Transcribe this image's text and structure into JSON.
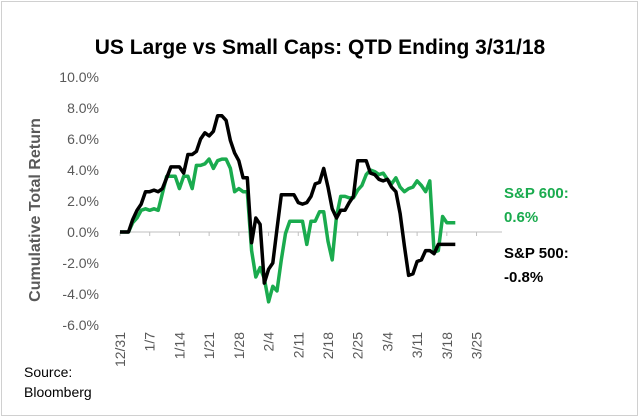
{
  "chart_data": {
    "type": "line",
    "title": "US Large vs Small Caps: QTD Ending 3/31/18",
    "ylabel": "Cumulative Total Return",
    "xlabel": "",
    "ylim": [
      -6.0,
      10.0
    ],
    "ytick_step": 2.0,
    "yticks": [
      "10.0%",
      "8.0%",
      "6.0%",
      "4.0%",
      "2.0%",
      "0.0%",
      "-2.0%",
      "-4.0%",
      "-6.0%"
    ],
    "grid": false,
    "x_ticks": [
      "12/31",
      "1/7",
      "1/14",
      "1/21",
      "1/28",
      "2/4",
      "2/11",
      "2/18",
      "2/25",
      "3/4",
      "3/11",
      "3/18",
      "3/25"
    ],
    "x_tick_day": [
      0,
      7,
      14,
      21,
      28,
      35,
      42,
      49,
      56,
      63,
      70,
      77,
      84
    ],
    "x_day_range": [
      0,
      90
    ],
    "series": [
      {
        "name": "S&P 600",
        "color": "#1aab4e",
        "points": [
          [
            0,
            0.0
          ],
          [
            2,
            0.0
          ],
          [
            3,
            0.6
          ],
          [
            4,
            0.9
          ],
          [
            5,
            1.4
          ],
          [
            6,
            1.5
          ],
          [
            7,
            1.4
          ],
          [
            8,
            1.5
          ],
          [
            9,
            1.4
          ],
          [
            10,
            2.5
          ],
          [
            11,
            3.6
          ],
          [
            12,
            3.6
          ],
          [
            13,
            3.6
          ],
          [
            14,
            2.8
          ],
          [
            15,
            3.6
          ],
          [
            16,
            3.6
          ],
          [
            17,
            2.8
          ],
          [
            18,
            4.3
          ],
          [
            19,
            4.3
          ],
          [
            20,
            4.4
          ],
          [
            21,
            4.7
          ],
          [
            22,
            4.1
          ],
          [
            23,
            4.6
          ],
          [
            24,
            4.7
          ],
          [
            25,
            4.7
          ],
          [
            26,
            4.1
          ],
          [
            27,
            2.6
          ],
          [
            28,
            2.8
          ],
          [
            29,
            2.6
          ],
          [
            30,
            2.6
          ],
          [
            31,
            -1.2
          ],
          [
            32,
            -2.9
          ],
          [
            33,
            -2.3
          ],
          [
            34,
            -3.0
          ],
          [
            35,
            -4.5
          ],
          [
            36,
            -3.5
          ],
          [
            37,
            -3.8
          ],
          [
            38,
            -1.8
          ],
          [
            39,
            -0.1
          ],
          [
            40,
            0.7
          ],
          [
            41,
            0.7
          ],
          [
            42,
            0.7
          ],
          [
            43,
            0.7
          ],
          [
            44,
            -0.8
          ],
          [
            45,
            0.7
          ],
          [
            46,
            0.7
          ],
          [
            47,
            1.3
          ],
          [
            48,
            1.3
          ],
          [
            49,
            -0.6
          ],
          [
            50,
            -1.8
          ],
          [
            51,
            1.0
          ],
          [
            52,
            2.3
          ],
          [
            53,
            2.3
          ],
          [
            54,
            2.2
          ],
          [
            55,
            2.2
          ],
          [
            56,
            2.7
          ],
          [
            57,
            3.0
          ],
          [
            58,
            3.7
          ],
          [
            59,
            4.0
          ],
          [
            60,
            3.9
          ],
          [
            61,
            3.7
          ],
          [
            62,
            3.8
          ],
          [
            63,
            3.4
          ],
          [
            64,
            3.1
          ],
          [
            65,
            3.5
          ],
          [
            66,
            2.9
          ],
          [
            67,
            2.6
          ],
          [
            68,
            2.8
          ],
          [
            69,
            2.9
          ],
          [
            70,
            3.3
          ],
          [
            71,
            3.0
          ],
          [
            72,
            2.6
          ],
          [
            73,
            3.3
          ],
          [
            74,
            -1.3
          ],
          [
            75,
            -1.2
          ],
          [
            76,
            1.0
          ],
          [
            77,
            0.6
          ],
          [
            78,
            0.6
          ],
          [
            79,
            0.6
          ]
        ]
      },
      {
        "name": "S&P 500",
        "color": "#000000",
        "points": [
          [
            0,
            0.0
          ],
          [
            2,
            0.0
          ],
          [
            3,
            0.8
          ],
          [
            4,
            1.4
          ],
          [
            5,
            1.8
          ],
          [
            6,
            2.6
          ],
          [
            7,
            2.6
          ],
          [
            8,
            2.7
          ],
          [
            9,
            2.6
          ],
          [
            10,
            2.8
          ],
          [
            11,
            3.5
          ],
          [
            12,
            4.2
          ],
          [
            13,
            4.2
          ],
          [
            14,
            4.2
          ],
          [
            15,
            3.8
          ],
          [
            16,
            5.0
          ],
          [
            17,
            5.0
          ],
          [
            18,
            5.2
          ],
          [
            19,
            6.0
          ],
          [
            20,
            6.4
          ],
          [
            21,
            6.2
          ],
          [
            22,
            6.5
          ],
          [
            23,
            7.5
          ],
          [
            24,
            7.5
          ],
          [
            25,
            7.2
          ],
          [
            26,
            5.9
          ],
          [
            27,
            5.1
          ],
          [
            28,
            4.6
          ],
          [
            29,
            3.5
          ],
          [
            30,
            3.5
          ],
          [
            31,
            -0.7
          ],
          [
            32,
            0.9
          ],
          [
            33,
            0.5
          ],
          [
            34,
            -3.3
          ],
          [
            35,
            -2.4
          ],
          [
            36,
            -2.0
          ],
          [
            37,
            0.2
          ],
          [
            38,
            2.4
          ],
          [
            39,
            2.4
          ],
          [
            40,
            2.4
          ],
          [
            41,
            2.4
          ],
          [
            42,
            1.9
          ],
          [
            43,
            1.8
          ],
          [
            44,
            1.9
          ],
          [
            45,
            2.3
          ],
          [
            46,
            3.1
          ],
          [
            47,
            3.2
          ],
          [
            48,
            4.1
          ],
          [
            49,
            2.9
          ],
          [
            50,
            1.5
          ],
          [
            51,
            0.9
          ],
          [
            52,
            1.4
          ],
          [
            53,
            1.4
          ],
          [
            54,
            1.9
          ],
          [
            55,
            2.3
          ],
          [
            56,
            4.6
          ],
          [
            57,
            4.6
          ],
          [
            58,
            4.6
          ],
          [
            59,
            3.8
          ],
          [
            60,
            3.7
          ],
          [
            61,
            3.4
          ],
          [
            62,
            3.3
          ],
          [
            63,
            3.4
          ],
          [
            64,
            2.9
          ],
          [
            65,
            2.6
          ],
          [
            66,
            1.2
          ],
          [
            67,
            -0.9
          ],
          [
            68,
            -2.8
          ],
          [
            69,
            -2.7
          ],
          [
            70,
            -1.9
          ],
          [
            71,
            -1.8
          ],
          [
            72,
            -1.2
          ],
          [
            73,
            -1.2
          ],
          [
            74,
            -1.4
          ],
          [
            75,
            -0.8
          ],
          [
            76,
            -0.8
          ],
          [
            77,
            -0.8
          ],
          [
            78,
            -0.8
          ],
          [
            79,
            -0.8
          ]
        ]
      }
    ],
    "annotations": [
      {
        "series": "S&P 600",
        "line1": "S&P 600:",
        "line2": "0.6%",
        "color": "#1aab4e"
      },
      {
        "series": "S&P 500",
        "line1": "S&P 500:",
        "line2": "-0.8%",
        "color": "#000000"
      }
    ]
  },
  "source": {
    "line1": "Source:",
    "line2": "Bloomberg"
  }
}
